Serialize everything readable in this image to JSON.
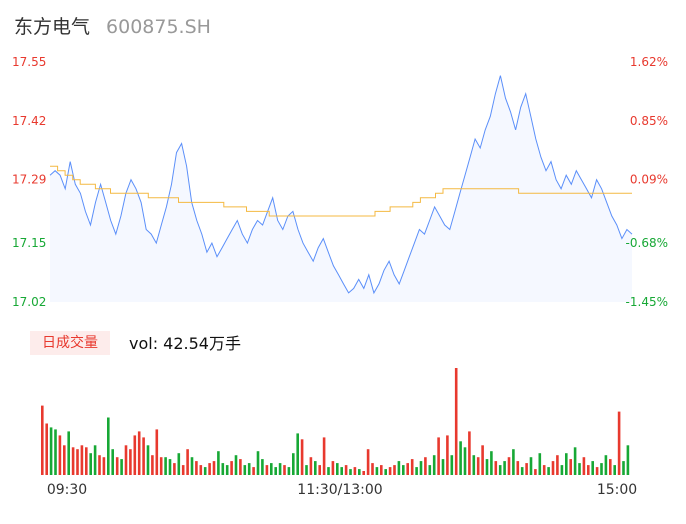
{
  "header": {
    "name": "东方电气",
    "code": "600875.SH"
  },
  "volume": {
    "tab_label": "日成交量",
    "summary": "vol: 42.54万手"
  },
  "colors": {
    "price": "#5b8ff9",
    "avg": "#f4b942",
    "up": "#e8392e",
    "down": "#17a835",
    "neutral": "#999999"
  },
  "chart_data": [
    {
      "type": "line",
      "title": "",
      "prev_close": 17.27,
      "y_ticks": [
        "17.55",
        "17.42",
        "17.29",
        "17.15",
        "17.02"
      ],
      "y_tick_values": [
        17.55,
        17.42,
        17.29,
        17.15,
        17.02
      ],
      "pct_ticks": [
        "1.62%",
        "0.85%",
        "0.09%",
        "-0.68%",
        "-1.45%"
      ],
      "ylim": [
        17.02,
        17.55
      ],
      "x_ticks": [
        "09:30",
        "11:30/13:00",
        "15:00"
      ],
      "series": [
        {
          "values": [
            17.3,
            17.31,
            17.3,
            17.27,
            17.33,
            17.28,
            17.26,
            17.22,
            17.19,
            17.24,
            17.28,
            17.24,
            17.2,
            17.17,
            17.21,
            17.26,
            17.29,
            17.27,
            17.24,
            17.18,
            17.17,
            17.15,
            17.19,
            17.23,
            17.28,
            17.35,
            17.37,
            17.32,
            17.24,
            17.2,
            17.17,
            17.13,
            17.15,
            17.12,
            17.14,
            17.16,
            17.18,
            17.2,
            17.17,
            17.15,
            17.18,
            17.2,
            17.19,
            17.22,
            17.25,
            17.2,
            17.18,
            17.21,
            17.22,
            17.18,
            17.15,
            17.13,
            17.11,
            17.14,
            17.16,
            17.13,
            17.1,
            17.08,
            17.06,
            17.04,
            17.05,
            17.07,
            17.05,
            17.08,
            17.04,
            17.06,
            17.09,
            17.11,
            17.08,
            17.06,
            17.09,
            17.12,
            17.15,
            17.18,
            17.17,
            17.2,
            17.23,
            17.21,
            17.19,
            17.18,
            17.22,
            17.26,
            17.3,
            17.34,
            17.38,
            17.36,
            17.4,
            17.43,
            17.48,
            17.52,
            17.47,
            17.44,
            17.4,
            17.45,
            17.48,
            17.43,
            17.38,
            17.34,
            17.31,
            17.33,
            17.29,
            17.27,
            17.3,
            17.28,
            17.31,
            17.29,
            17.27,
            17.25,
            17.29,
            17.27,
            17.24,
            17.21,
            17.19,
            17.16,
            17.18,
            17.17
          ]
        },
        {
          "values": [
            17.32,
            17.31,
            17.3,
            17.29,
            17.28,
            17.28,
            17.27,
            17.27,
            17.26,
            17.26,
            17.26,
            17.26,
            17.26,
            17.25,
            17.25,
            17.25,
            17.25,
            17.24,
            17.24,
            17.24,
            17.24,
            17.24,
            17.24,
            17.23,
            17.23,
            17.23,
            17.22,
            17.22,
            17.22,
            17.21,
            17.21,
            17.21,
            17.21,
            17.21,
            17.21,
            17.21,
            17.21,
            17.21,
            17.21,
            17.21,
            17.21,
            17.21,
            17.21,
            17.22,
            17.22,
            17.23,
            17.23,
            17.23,
            17.24,
            17.25,
            17.25,
            17.26,
            17.27,
            17.27,
            17.27,
            17.27,
            17.27,
            17.27,
            17.27,
            17.27,
            17.27,
            17.27,
            17.26,
            17.26,
            17.26,
            17.26,
            17.26,
            17.26,
            17.26,
            17.26,
            17.26,
            17.26,
            17.26,
            17.26,
            17.26,
            17.26,
            17.26,
            17.26
          ]
        }
      ]
    },
    {
      "type": "bar",
      "title": "",
      "bars": [
        [
          70,
          "up"
        ],
        [
          52,
          "up"
        ],
        [
          48,
          "down"
        ],
        [
          46,
          "down"
        ],
        [
          40,
          "up"
        ],
        [
          30,
          "up"
        ],
        [
          44,
          "down"
        ],
        [
          28,
          "up"
        ],
        [
          26,
          "up"
        ],
        [
          30,
          "up"
        ],
        [
          28,
          "up"
        ],
        [
          22,
          "down"
        ],
        [
          30,
          "down"
        ],
        [
          20,
          "up"
        ],
        [
          18,
          "up"
        ],
        [
          58,
          "down"
        ],
        [
          26,
          "down"
        ],
        [
          18,
          "up"
        ],
        [
          16,
          "down"
        ],
        [
          30,
          "up"
        ],
        [
          26,
          "up"
        ],
        [
          40,
          "up"
        ],
        [
          44,
          "up"
        ],
        [
          38,
          "up"
        ],
        [
          30,
          "down"
        ],
        [
          20,
          "up"
        ],
        [
          46,
          "up"
        ],
        [
          18,
          "up"
        ],
        [
          18,
          "down"
        ],
        [
          16,
          "down"
        ],
        [
          12,
          "up"
        ],
        [
          22,
          "down"
        ],
        [
          10,
          "up"
        ],
        [
          26,
          "up"
        ],
        [
          18,
          "down"
        ],
        [
          14,
          "up"
        ],
        [
          10,
          "up"
        ],
        [
          8,
          "down"
        ],
        [
          12,
          "up"
        ],
        [
          14,
          "up"
        ],
        [
          24,
          "down"
        ],
        [
          12,
          "down"
        ],
        [
          10,
          "down"
        ],
        [
          14,
          "up"
        ],
        [
          20,
          "down"
        ],
        [
          16,
          "up"
        ],
        [
          10,
          "down"
        ],
        [
          12,
          "down"
        ],
        [
          8,
          "up"
        ],
        [
          24,
          "down"
        ],
        [
          16,
          "down"
        ],
        [
          10,
          "up"
        ],
        [
          12,
          "down"
        ],
        [
          8,
          "down"
        ],
        [
          12,
          "down"
        ],
        [
          10,
          "up"
        ],
        [
          8,
          "down"
        ],
        [
          22,
          "down"
        ],
        [
          42,
          "down"
        ],
        [
          36,
          "up"
        ],
        [
          10,
          "down"
        ],
        [
          18,
          "up"
        ],
        [
          14,
          "down"
        ],
        [
          10,
          "up"
        ],
        [
          38,
          "up"
        ],
        [
          8,
          "down"
        ],
        [
          14,
          "up"
        ],
        [
          12,
          "down"
        ],
        [
          8,
          "down"
        ],
        [
          10,
          "up"
        ],
        [
          6,
          "down"
        ],
        [
          8,
          "up"
        ],
        [
          6,
          "down"
        ],
        [
          4,
          "up"
        ],
        [
          26,
          "up"
        ],
        [
          12,
          "up"
        ],
        [
          8,
          "down"
        ],
        [
          10,
          "up"
        ],
        [
          6,
          "down"
        ],
        [
          8,
          "up"
        ],
        [
          10,
          "up"
        ],
        [
          14,
          "down"
        ],
        [
          10,
          "down"
        ],
        [
          12,
          "up"
        ],
        [
          16,
          "up"
        ],
        [
          8,
          "down"
        ],
        [
          14,
          "down"
        ],
        [
          18,
          "up"
        ],
        [
          10,
          "down"
        ],
        [
          20,
          "down"
        ],
        [
          38,
          "up"
        ],
        [
          16,
          "down"
        ],
        [
          40,
          "up"
        ],
        [
          20,
          "down"
        ],
        [
          108,
          "up"
        ],
        [
          34,
          "down"
        ],
        [
          28,
          "down"
        ],
        [
          44,
          "up"
        ],
        [
          20,
          "down"
        ],
        [
          18,
          "up"
        ],
        [
          30,
          "up"
        ],
        [
          16,
          "down"
        ],
        [
          24,
          "down"
        ],
        [
          14,
          "up"
        ],
        [
          10,
          "down"
        ],
        [
          14,
          "down"
        ],
        [
          18,
          "up"
        ],
        [
          26,
          "down"
        ],
        [
          14,
          "up"
        ],
        [
          8,
          "down"
        ],
        [
          12,
          "up"
        ],
        [
          18,
          "down"
        ],
        [
          6,
          "up"
        ],
        [
          22,
          "down"
        ],
        [
          10,
          "up"
        ],
        [
          8,
          "down"
        ],
        [
          14,
          "up"
        ],
        [
          20,
          "up"
        ],
        [
          10,
          "down"
        ],
        [
          22,
          "down"
        ],
        [
          16,
          "up"
        ],
        [
          28,
          "down"
        ],
        [
          12,
          "down"
        ],
        [
          18,
          "up"
        ],
        [
          10,
          "up"
        ],
        [
          14,
          "down"
        ],
        [
          8,
          "up"
        ],
        [
          12,
          "down"
        ],
        [
          20,
          "down"
        ],
        [
          16,
          "up"
        ],
        [
          10,
          "down"
        ],
        [
          64,
          "up"
        ],
        [
          14,
          "down"
        ],
        [
          30,
          "down"
        ]
      ]
    }
  ]
}
